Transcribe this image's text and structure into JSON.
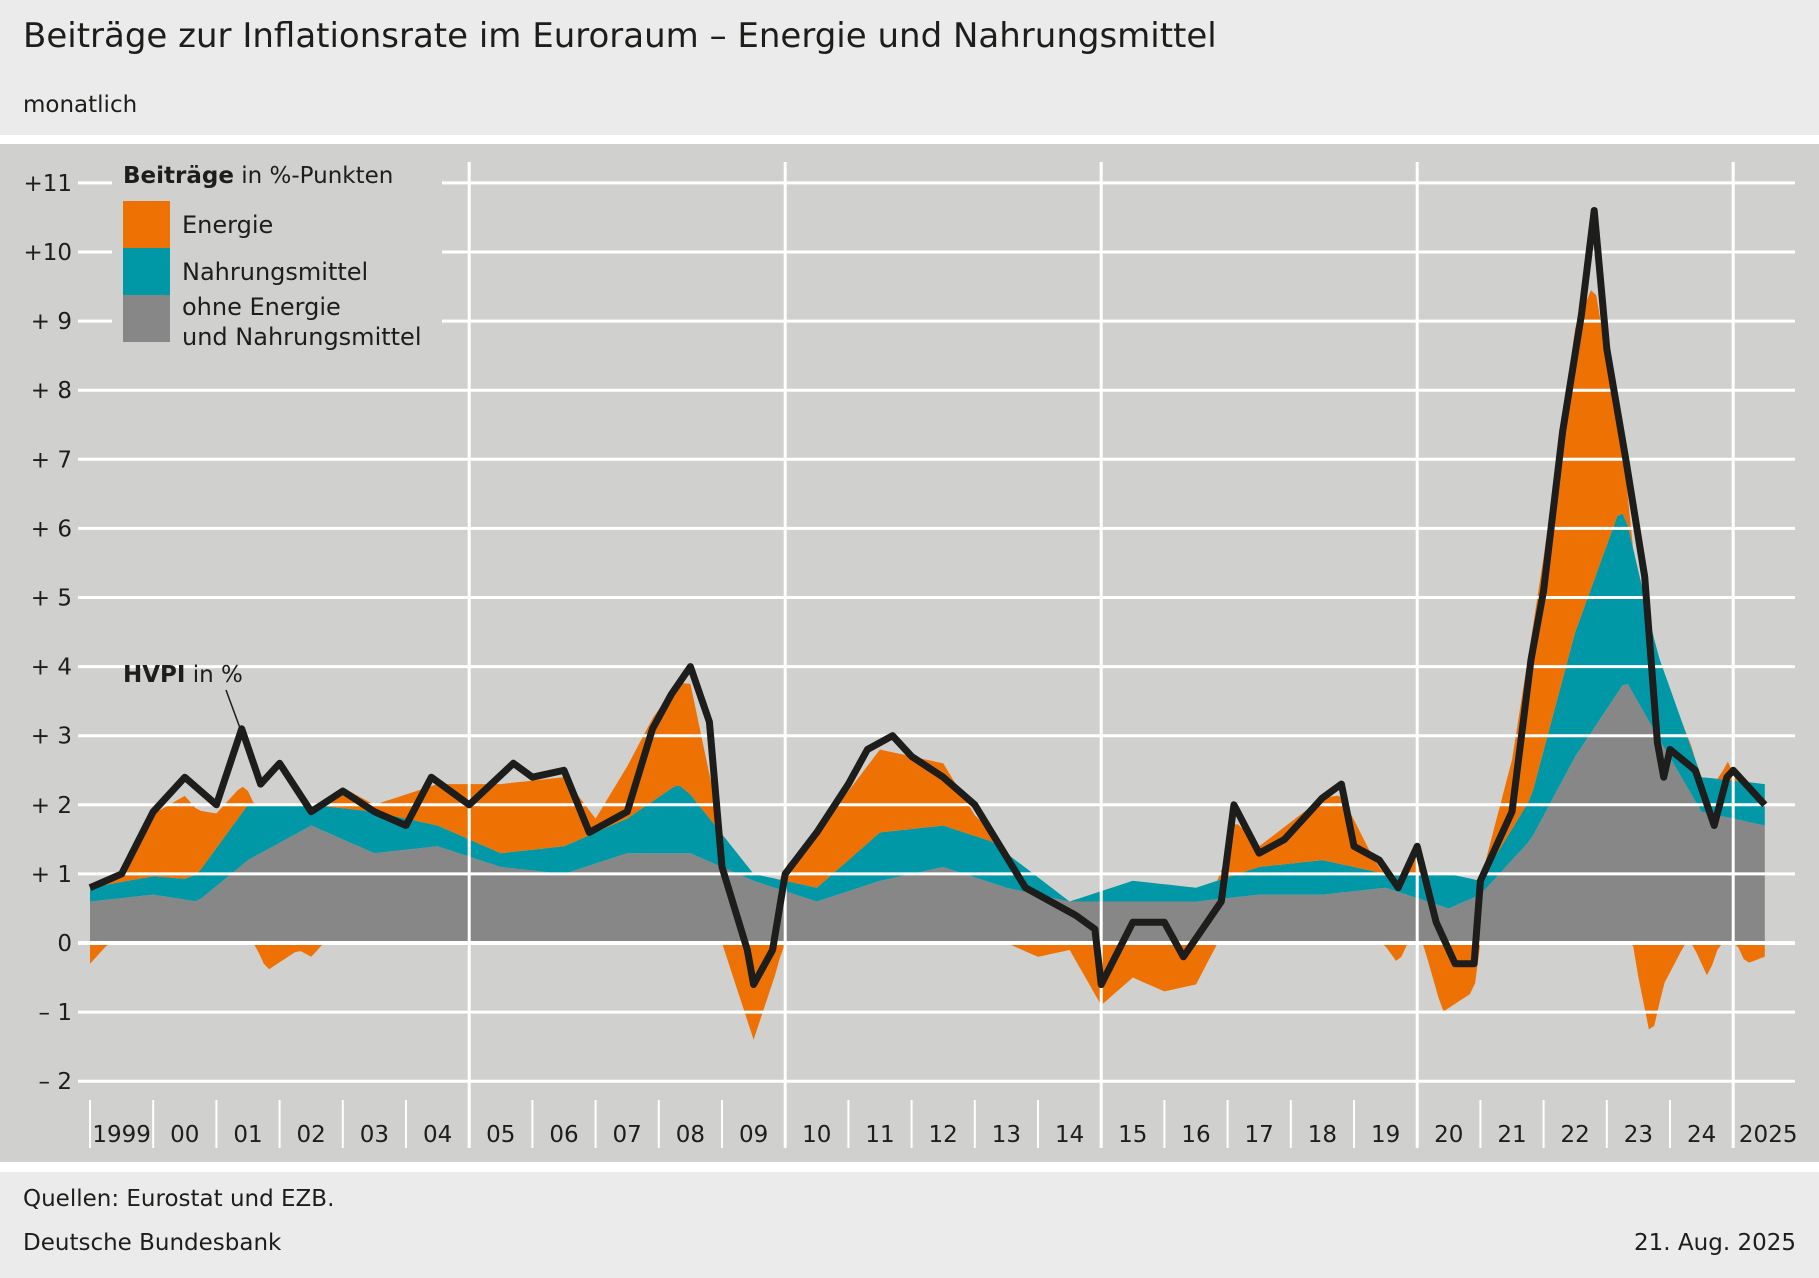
{
  "header": {
    "title": "Beiträge zur Inflationsrate im Euroraum – Energie und Nahrungsmittel",
    "subtitle": "monatlich"
  },
  "footer": {
    "source": "Quellen: Eurostat und EZB.",
    "publisher": "Deutsche Bundesbank",
    "date": "21. Aug. 2025"
  },
  "chart_data": {
    "type": "area",
    "stacked": true,
    "legend_title_bold": "Beiträge",
    "legend_title_rest": " in %-Punkten",
    "legend_placement": "top-left",
    "ylim": [
      -2,
      11
    ],
    "xlim": [
      1999,
      2025.6
    ],
    "grid": true,
    "y_ticks": [
      {
        "value": 11,
        "label": "+11"
      },
      {
        "value": 10,
        "label": "+10"
      },
      {
        "value": 9,
        "label": "+  9"
      },
      {
        "value": 8,
        "label": "+  8"
      },
      {
        "value": 7,
        "label": "+  7"
      },
      {
        "value": 6,
        "label": "+  6"
      },
      {
        "value": 5,
        "label": "+  5"
      },
      {
        "value": 4,
        "label": "+  4"
      },
      {
        "value": 3,
        "label": "+  3"
      },
      {
        "value": 2,
        "label": "+  2"
      },
      {
        "value": 1,
        "label": "+  1"
      },
      {
        "value": 0,
        "label": "0"
      },
      {
        "value": -1,
        "label": "–  1"
      },
      {
        "value": -2,
        "label": "–  2"
      }
    ],
    "x_tick_labels": [
      "1999",
      "00",
      "01",
      "02",
      "03",
      "04",
      "05",
      "06",
      "07",
      "08",
      "09",
      "10",
      "11",
      "12",
      "13",
      "14",
      "15",
      "16",
      "17",
      "18",
      "19",
      "20",
      "21",
      "22",
      "23",
      "24",
      "2025"
    ],
    "series": [
      {
        "name": "ohne Energie\nund Nahrungsmittel",
        "color": "#878787",
        "points": [
          [
            1999,
            0.6
          ],
          [
            2000,
            0.7
          ],
          [
            2000.7,
            0.6
          ],
          [
            2001.5,
            1.2
          ],
          [
            2002.5,
            1.7
          ],
          [
            2003.5,
            1.3
          ],
          [
            2004.5,
            1.4
          ],
          [
            2005.5,
            1.1
          ],
          [
            2006.5,
            1.0
          ],
          [
            2007.5,
            1.3
          ],
          [
            2008.5,
            1.3
          ],
          [
            2009.5,
            0.9
          ],
          [
            2010.5,
            0.6
          ],
          [
            2011.5,
            0.9
          ],
          [
            2012.5,
            1.1
          ],
          [
            2013.5,
            0.8
          ],
          [
            2014.5,
            0.6
          ],
          [
            2015.5,
            0.6
          ],
          [
            2016.5,
            0.6
          ],
          [
            2017.5,
            0.7
          ],
          [
            2018.5,
            0.7
          ],
          [
            2019.5,
            0.8
          ],
          [
            2020.5,
            0.5
          ],
          [
            2021,
            0.7
          ],
          [
            2021.8,
            1.5
          ],
          [
            2022.5,
            2.7
          ],
          [
            2023.3,
            3.8
          ],
          [
            2023.8,
            3.0
          ],
          [
            2024.5,
            1.9
          ],
          [
            2025.5,
            1.7
          ]
        ]
      },
      {
        "name": "Nahrungsmittel",
        "color": "#0098a6",
        "points": [
          [
            1999,
            0.2
          ],
          [
            2000.5,
            0.3
          ],
          [
            2001.5,
            0.8
          ],
          [
            2002.5,
            0.3
          ],
          [
            2003.5,
            0.6
          ],
          [
            2004.5,
            0.3
          ],
          [
            2005.5,
            0.2
          ],
          [
            2006.5,
            0.4
          ],
          [
            2007.5,
            0.5
          ],
          [
            2008.3,
            1.0
          ],
          [
            2009.5,
            0.1
          ],
          [
            2010.5,
            0.2
          ],
          [
            2011.5,
            0.7
          ],
          [
            2012.5,
            0.6
          ],
          [
            2013.3,
            0.6
          ],
          [
            2014.5,
            0.0
          ],
          [
            2015.5,
            0.3
          ],
          [
            2016.5,
            0.2
          ],
          [
            2017.5,
            0.4
          ],
          [
            2018.5,
            0.5
          ],
          [
            2019.5,
            0.2
          ],
          [
            2020.5,
            0.5
          ],
          [
            2021,
            0.2
          ],
          [
            2021.8,
            0.6
          ],
          [
            2022.5,
            1.8
          ],
          [
            2023.2,
            2.6
          ],
          [
            2023.8,
            1.2
          ],
          [
            2024.5,
            0.5
          ],
          [
            2025.5,
            0.6
          ]
        ]
      },
      {
        "name": "Energie",
        "color": "#ee7203",
        "points": [
          [
            1999,
            -0.3
          ],
          [
            1999.5,
            0.2
          ],
          [
            2000,
            0.9
          ],
          [
            2000.5,
            1.2
          ],
          [
            2001,
            0.5
          ],
          [
            2001.4,
            0.4
          ],
          [
            2001.8,
            -0.4
          ],
          [
            2002.3,
            -0.1
          ],
          [
            2002.5,
            -0.2
          ],
          [
            2003,
            0.3
          ],
          [
            2003.5,
            0.1
          ],
          [
            2004.5,
            0.6
          ],
          [
            2005.5,
            1.0
          ],
          [
            2006.5,
            1.0
          ],
          [
            2007,
            0.2
          ],
          [
            2007.9,
            1.2
          ],
          [
            2008.5,
            1.6
          ],
          [
            2009,
            0.0
          ],
          [
            2009.5,
            -1.4
          ],
          [
            2009.9,
            -0.3
          ],
          [
            2010,
            0.2
          ],
          [
            2010.5,
            0.8
          ],
          [
            2011.5,
            1.2
          ],
          [
            2012.5,
            0.9
          ],
          [
            2013,
            0.3
          ],
          [
            2013.5,
            0.0
          ],
          [
            2014,
            -0.2
          ],
          [
            2014.5,
            -0.1
          ],
          [
            2015,
            -0.9
          ],
          [
            2015.5,
            -0.5
          ],
          [
            2016,
            -0.7
          ],
          [
            2016.5,
            -0.6
          ],
          [
            2016.9,
            0.1
          ],
          [
            2017.1,
            0.8
          ],
          [
            2017.5,
            0.3
          ],
          [
            2018.5,
            0.9
          ],
          [
            2018.8,
            1.0
          ],
          [
            2019.3,
            0.2
          ],
          [
            2019.7,
            -0.3
          ],
          [
            2020,
            0.3
          ],
          [
            2020.4,
            -1.0
          ],
          [
            2020.9,
            -0.7
          ],
          [
            2021,
            0.0
          ],
          [
            2021.5,
            1.0
          ],
          [
            2021.8,
            2.3
          ],
          [
            2022,
            2.8
          ],
          [
            2022.5,
            4.4
          ],
          [
            2022.8,
            4.3
          ],
          [
            2023,
            2.7
          ],
          [
            2023.3,
            0.6
          ],
          [
            2023.5,
            -0.5
          ],
          [
            2023.7,
            -1.4
          ],
          [
            2023.9,
            -0.6
          ],
          [
            2024.3,
            0.1
          ],
          [
            2024.6,
            -0.5
          ],
          [
            2024.9,
            0.3
          ],
          [
            2025.2,
            -0.3
          ],
          [
            2025.5,
            -0.2
          ]
        ]
      }
    ],
    "line": {
      "name_bold": "HVPI",
      "name_rest": " in %",
      "color": "#1d1d1b",
      "points": [
        [
          1999,
          0.8
        ],
        [
          1999.5,
          1.0
        ],
        [
          2000,
          1.9
        ],
        [
          2000.5,
          2.4
        ],
        [
          2001,
          2.0
        ],
        [
          2001.4,
          3.1
        ],
        [
          2001.7,
          2.3
        ],
        [
          2002,
          2.6
        ],
        [
          2002.5,
          1.9
        ],
        [
          2003,
          2.2
        ],
        [
          2003.5,
          1.9
        ],
        [
          2004,
          1.7
        ],
        [
          2004.4,
          2.4
        ],
        [
          2005,
          2.0
        ],
        [
          2005.7,
          2.6
        ],
        [
          2006,
          2.4
        ],
        [
          2006.5,
          2.5
        ],
        [
          2006.9,
          1.6
        ],
        [
          2007.5,
          1.9
        ],
        [
          2007.9,
          3.1
        ],
        [
          2008.2,
          3.6
        ],
        [
          2008.5,
          4.0
        ],
        [
          2008.8,
          3.2
        ],
        [
          2009,
          1.1
        ],
        [
          2009.4,
          -0.1
        ],
        [
          2009.5,
          -0.6
        ],
        [
          2009.8,
          -0.1
        ],
        [
          2010,
          1.0
        ],
        [
          2010.5,
          1.6
        ],
        [
          2011,
          2.3
        ],
        [
          2011.3,
          2.8
        ],
        [
          2011.7,
          3.0
        ],
        [
          2012,
          2.7
        ],
        [
          2012.5,
          2.4
        ],
        [
          2013,
          2.0
        ],
        [
          2013.4,
          1.4
        ],
        [
          2013.8,
          0.8
        ],
        [
          2014.2,
          0.6
        ],
        [
          2014.6,
          0.4
        ],
        [
          2014.9,
          0.2
        ],
        [
          2015,
          -0.6
        ],
        [
          2015.5,
          0.3
        ],
        [
          2016,
          0.3
        ],
        [
          2016.3,
          -0.2
        ],
        [
          2016.9,
          0.6
        ],
        [
          2017.1,
          2.0
        ],
        [
          2017.5,
          1.3
        ],
        [
          2017.9,
          1.5
        ],
        [
          2018.5,
          2.1
        ],
        [
          2018.8,
          2.3
        ],
        [
          2019,
          1.4
        ],
        [
          2019.4,
          1.2
        ],
        [
          2019.7,
          0.8
        ],
        [
          2020,
          1.4
        ],
        [
          2020.3,
          0.3
        ],
        [
          2020.6,
          -0.3
        ],
        [
          2020.9,
          -0.3
        ],
        [
          2021,
          0.9
        ],
        [
          2021.5,
          1.9
        ],
        [
          2021.8,
          4.1
        ],
        [
          2022,
          5.1
        ],
        [
          2022.3,
          7.4
        ],
        [
          2022.6,
          9.1
        ],
        [
          2022.8,
          10.6
        ],
        [
          2023,
          8.6
        ],
        [
          2023.3,
          7.0
        ],
        [
          2023.6,
          5.3
        ],
        [
          2023.8,
          2.9
        ],
        [
          2023.9,
          2.4
        ],
        [
          2024,
          2.8
        ],
        [
          2024.4,
          2.5
        ],
        [
          2024.7,
          1.7
        ],
        [
          2024.9,
          2.4
        ],
        [
          2025,
          2.5
        ],
        [
          2025.3,
          2.2
        ],
        [
          2025.5,
          2.0
        ]
      ]
    }
  }
}
